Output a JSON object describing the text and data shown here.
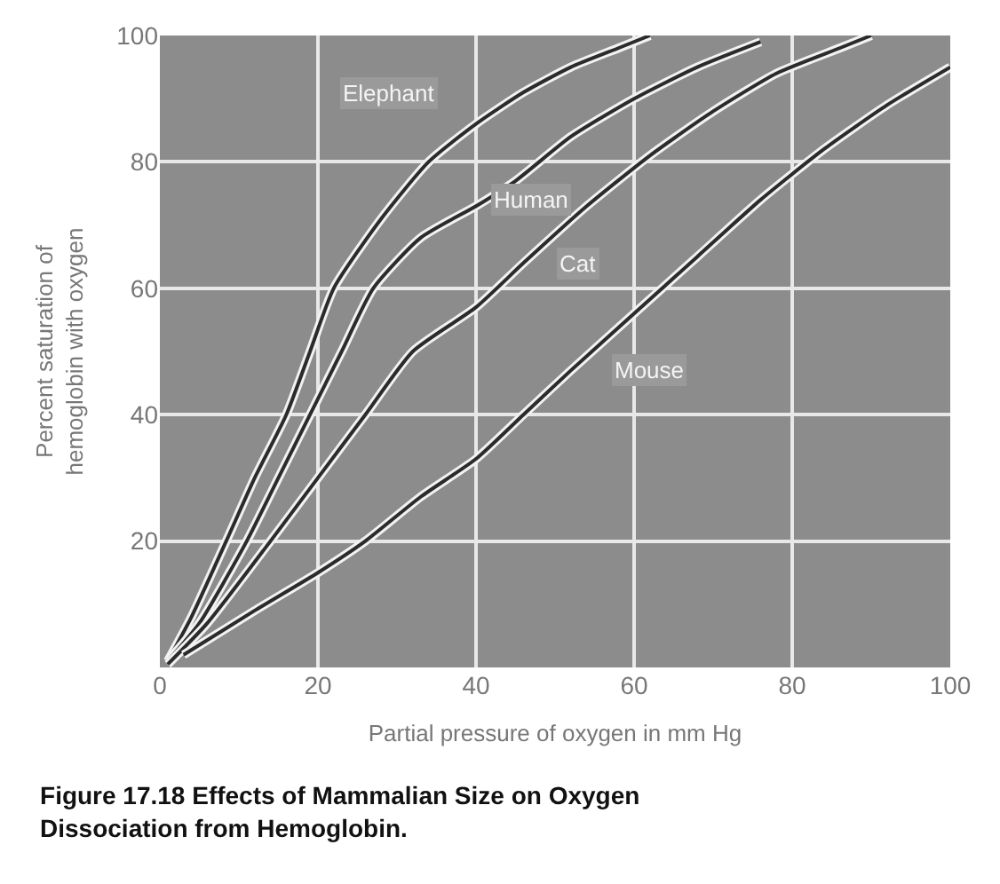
{
  "chart_data": {
    "type": "line",
    "title": "Figure 17.18 Effects of Mammalian Size on Oxygen Dissociation from Hemoglobin.",
    "xlabel": "Partial pressure of oxygen in mm Hg",
    "ylabel": "Percent saturation of\nhemoglobin with oxygen",
    "xlim": [
      0,
      100
    ],
    "ylim": [
      0,
      100
    ],
    "xticks": [
      0,
      20,
      40,
      60,
      80,
      100
    ],
    "yticks": [
      20,
      40,
      60,
      80,
      100
    ],
    "grid": true,
    "marker": "none",
    "line_style": "solid",
    "series": [
      {
        "color": "#2b2b2b",
        "x": [
          1,
          4,
          8.4,
          12,
          16,
          19,
          22,
          28,
          34,
          40,
          46,
          52,
          58,
          62
        ],
        "values": [
          1,
          8,
          20,
          30,
          40,
          50,
          60,
          71,
          80,
          86,
          91,
          95,
          98,
          100
        ]
      },
      {
        "color": "#2b2b2b",
        "x": [
          1,
          5,
          11,
          15,
          19,
          23,
          27,
          33,
          40,
          45,
          52,
          60,
          68,
          76
        ],
        "values": [
          1,
          7,
          20,
          30,
          40,
          50,
          60,
          68,
          73,
          77,
          84,
          90,
          95,
          99
        ]
      },
      {
        "color": "#2b2b2b",
        "x": [
          1,
          6,
          14,
          20,
          26,
          32,
          40,
          46,
          54,
          62,
          70,
          78,
          86,
          90
        ],
        "values": [
          0.5,
          7,
          20,
          30,
          40,
          50,
          57,
          64,
          73,
          81,
          88,
          94,
          98,
          100
        ]
      },
      {
        "color": "#2b2b2b",
        "x": [
          3,
          12,
          20,
          26,
          33,
          40,
          46,
          52,
          60,
          68,
          76,
          84,
          92,
          100
        ],
        "values": [
          2,
          9,
          15,
          20,
          27,
          33,
          40,
          47,
          56,
          65,
          74,
          82,
          89,
          95
        ]
      }
    ],
    "annotations": [
      "Elephant",
      "Human",
      "Cat",
      "Mouse"
    ]
  }
}
